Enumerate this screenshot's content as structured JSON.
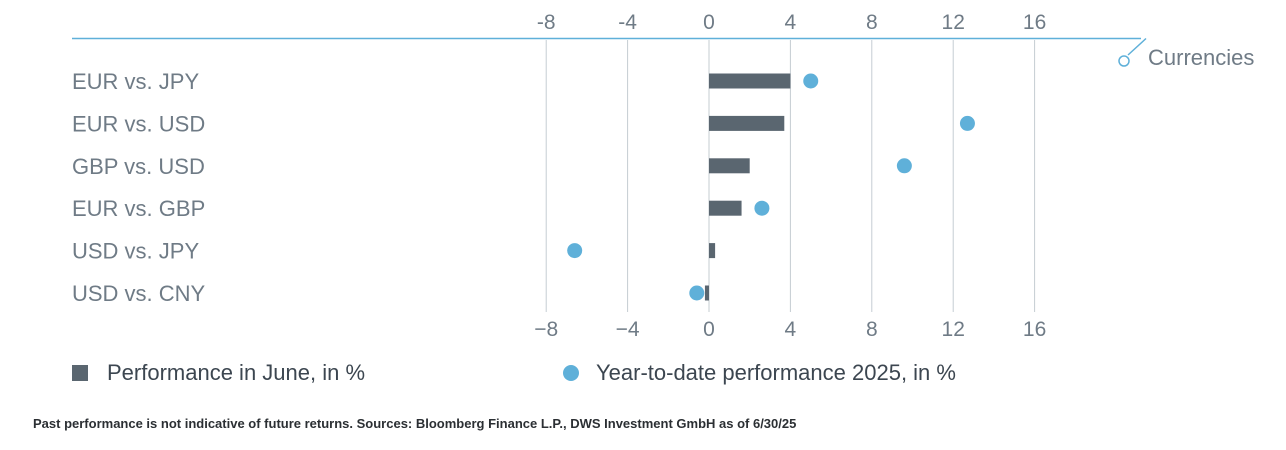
{
  "chart_data": {
    "type": "bar",
    "orientation": "horizontal",
    "section_label": "Currencies",
    "categories": [
      "EUR vs. JPY",
      "EUR vs. USD",
      "GBP vs. USD",
      "EUR vs. GBP",
      "USD vs. JPY",
      "USD vs. CNY"
    ],
    "series": [
      {
        "name": "Performance in June, in %",
        "mark": "bar",
        "color": "#5a6670",
        "values": [
          4.0,
          3.7,
          2.0,
          1.6,
          0.3,
          -0.2
        ]
      },
      {
        "name": "Year-to-date performance 2025, in %",
        "mark": "dot",
        "color": "#5fb0d9",
        "values": [
          5.0,
          12.7,
          9.6,
          2.6,
          -6.6,
          -0.6
        ]
      }
    ],
    "x_ticks_top": [
      "-8",
      "-4",
      "0",
      "4",
      "8",
      "12",
      "16"
    ],
    "x_ticks_bottom": [
      "−8",
      "−4",
      "0",
      "4",
      "8",
      "12",
      "16"
    ],
    "xlim": [
      -8,
      16
    ],
    "grid": true,
    "legend_position": "bottom"
  },
  "legend": {
    "bar_label": "Performance in June, in %",
    "dot_label": "Year-to-date performance 2025, in %"
  },
  "source_note": "Past performance is not indicative of future returns. Sources: Bloomberg Finance L.P., DWS Investment GmbH as of 6/30/25",
  "colors": {
    "bar": "#5a6670",
    "dot": "#5fb0d9",
    "accent_line": "#5fb0d9",
    "grid": "#c5ccd2",
    "text": "#6f7b86"
  }
}
